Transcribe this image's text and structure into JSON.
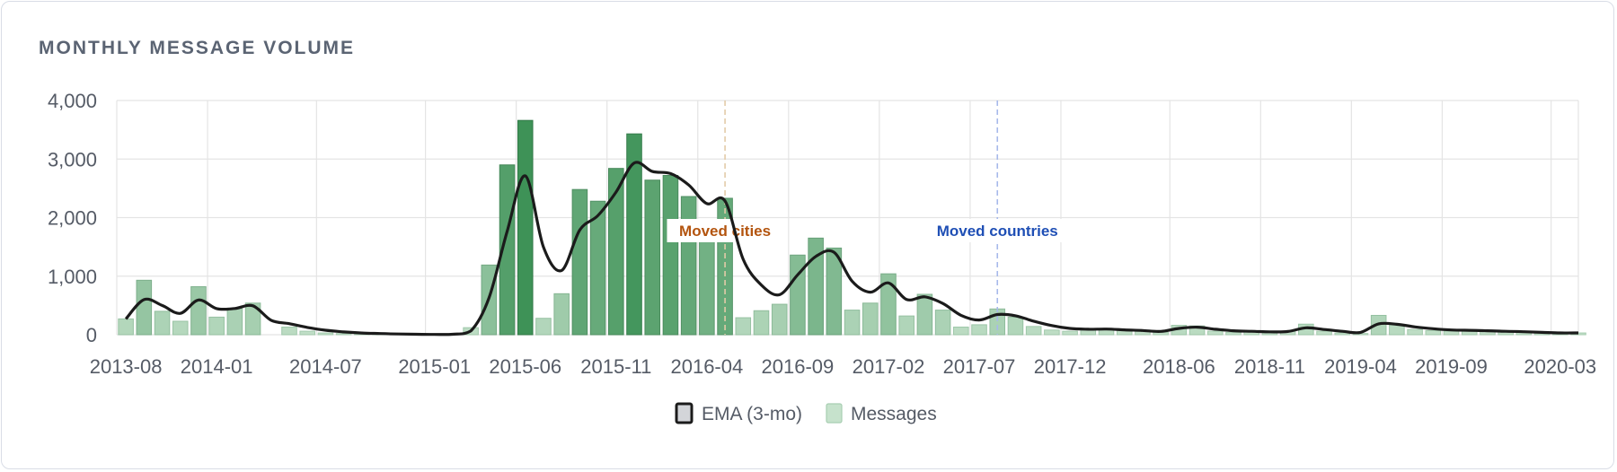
{
  "card": {
    "title": "MONTHLY MESSAGE VOLUME"
  },
  "chart_data": {
    "type": "bar",
    "title": "MONTHLY MESSAGE VOLUME",
    "xlabel": "",
    "ylabel": "",
    "ylim": [
      0,
      4000
    ],
    "y_ticks": [
      0,
      1000,
      2000,
      3000,
      4000
    ],
    "y_tick_labels": [
      "0",
      "1,000",
      "2,000",
      "3,000",
      "4,000"
    ],
    "x_tick_labels": [
      "2013-08",
      "2014-01",
      "2014-07",
      "2015-01",
      "2015-06",
      "2015-11",
      "2016-04",
      "2016-09",
      "2017-02",
      "2017-07",
      "2017-12",
      "2018-06",
      "2018-11",
      "2019-04",
      "2019-09",
      "2020-03"
    ],
    "categories": [
      "2013-08",
      "2013-09",
      "2013-10",
      "2013-11",
      "2013-12",
      "2014-01",
      "2014-02",
      "2014-03",
      "2014-04",
      "2014-05",
      "2014-06",
      "2014-07",
      "2014-08",
      "2014-09",
      "2014-10",
      "2014-11",
      "2014-12",
      "2015-01",
      "2015-02",
      "2015-03",
      "2015-04",
      "2015-05",
      "2015-06",
      "2015-07",
      "2015-08",
      "2015-09",
      "2015-10",
      "2015-11",
      "2015-12",
      "2016-01",
      "2016-02",
      "2016-03",
      "2016-04",
      "2016-05",
      "2016-06",
      "2016-07",
      "2016-08",
      "2016-09",
      "2016-10",
      "2016-11",
      "2016-12",
      "2017-01",
      "2017-02",
      "2017-03",
      "2017-04",
      "2017-05",
      "2017-06",
      "2017-07",
      "2017-08",
      "2017-09",
      "2017-10",
      "2017-11",
      "2017-12",
      "2018-01",
      "2018-02",
      "2018-03",
      "2018-04",
      "2018-05",
      "2018-06",
      "2018-07",
      "2018-08",
      "2018-09",
      "2018-10",
      "2018-11",
      "2018-12",
      "2019-01",
      "2019-02",
      "2019-03",
      "2019-04",
      "2019-05",
      "2019-06",
      "2019-07",
      "2019-08",
      "2019-09",
      "2019-10",
      "2019-11",
      "2019-12",
      "2020-01",
      "2020-02",
      "2020-03",
      "2020-04"
    ],
    "series": [
      {
        "name": "Messages",
        "type": "bar",
        "color": "#3c8f55",
        "values": [
          270,
          930,
          400,
          230,
          820,
          300,
          450,
          540,
          0,
          130,
          60,
          30,
          20,
          10,
          10,
          5,
          5,
          0,
          10,
          120,
          1190,
          2900,
          3660,
          280,
          700,
          2480,
          2280,
          2840,
          3430,
          2640,
          2720,
          2360,
          1920,
          2330,
          290,
          410,
          520,
          1360,
          1650,
          1480,
          420,
          540,
          1040,
          320,
          690,
          420,
          130,
          170,
          440,
          300,
          140,
          80,
          60,
          80,
          100,
          70,
          60,
          40,
          160,
          150,
          60,
          40,
          50,
          40,
          60,
          180,
          60,
          30,
          20,
          330,
          170,
          90,
          70,
          60,
          70,
          60,
          50,
          40,
          30,
          20,
          30
        ]
      },
      {
        "name": "EMA (3-mo)",
        "type": "line",
        "color": "#1b1b1b",
        "values": [
          270,
          600,
          500,
          365,
          593,
          446,
          448,
          494,
          247,
          189,
          124,
          77,
          48,
          29,
          20,
          12,
          8,
          4,
          7,
          64,
          627,
          1763,
          2712,
          1496,
          1098,
          1789,
          2035,
          2437,
          2934,
          2787,
          2753,
          2557,
          2239,
          2284,
          1287,
          849,
          684,
          1022,
          1336,
          1408,
          914,
          727,
          884,
          602,
          646,
          533,
          331,
          251,
          345,
          323,
          231,
          156,
          108,
          94,
          97,
          83,
          72,
          56,
          108,
          129,
          94,
          67,
          59,
          49,
          55,
          118,
          89,
          59,
          40,
          185,
          178,
          134,
          102,
          81,
          75,
          68,
          59,
          50,
          40,
          30,
          30
        ]
      }
    ],
    "annotations": [
      {
        "label": "Moved cities",
        "x": "2016-05",
        "color": "#b3540e",
        "line_color": "#e3cba8"
      },
      {
        "label": "Moved countries",
        "x": "2017-08",
        "color": "#1f4fb5",
        "line_color": "#a7b9ea"
      }
    ],
    "legend": {
      "position": "bottom",
      "items": [
        "EMA (3-mo)",
        "Messages"
      ]
    },
    "grid": true
  }
}
